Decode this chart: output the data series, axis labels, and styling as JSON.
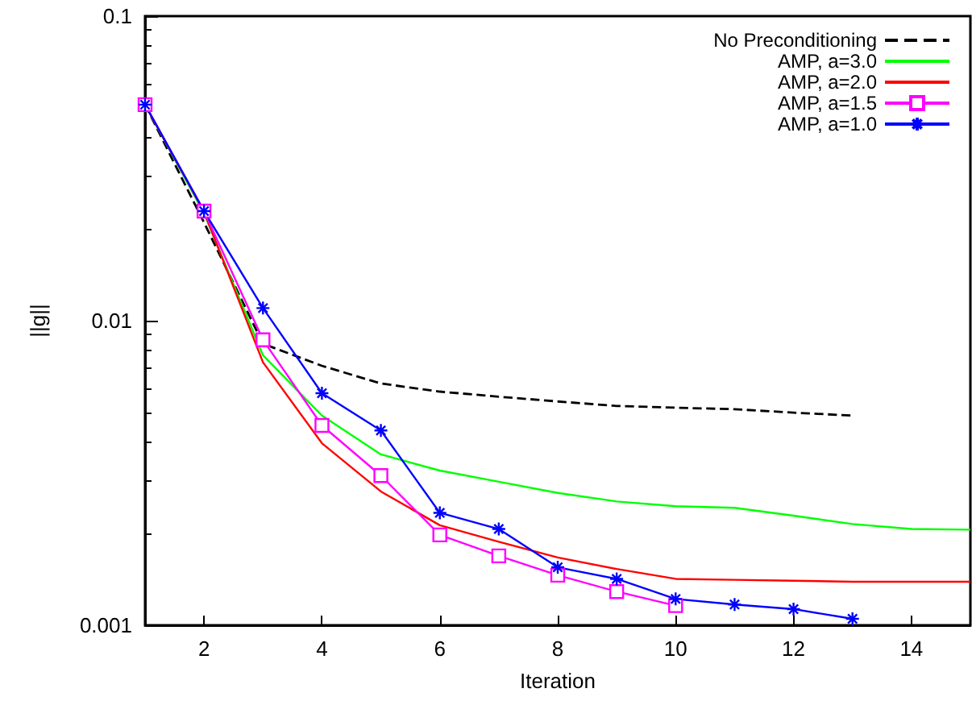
{
  "chart_data": {
    "type": "line",
    "xlabel": "Iteration",
    "ylabel": "||g||",
    "log": "y",
    "grid": false,
    "legend": "top right",
    "xlim": [
      1,
      15
    ],
    "xticks": [
      2,
      4,
      6,
      8,
      10,
      12,
      14
    ],
    "ylim": [
      0.001,
      0.1
    ],
    "yticks": [
      0.001,
      0.01,
      0.1
    ],
    "x": [
      1,
      2,
      3,
      4,
      5,
      6,
      7,
      8,
      9,
      10,
      11,
      12,
      13,
      14,
      15
    ],
    "series": [
      {
        "name": "No Preconditioning",
        "color": "#000000",
        "line_style": "dashed",
        "marker": "none",
        "values": [
          0.0512,
          0.021,
          0.0084,
          0.00711,
          0.00622,
          0.00585,
          0.00563,
          0.00543,
          0.00525,
          0.00518,
          0.00512,
          0.00499,
          0.00488,
          null,
          null
        ]
      },
      {
        "name": "AMP, a=3.0",
        "color": "#00ff00",
        "line_style": "solid",
        "marker": "none",
        "values": [
          0.0512,
          0.0225,
          0.0077,
          0.00488,
          0.00364,
          0.00322,
          0.00296,
          0.00272,
          0.00255,
          0.00246,
          0.00243,
          0.00229,
          0.00215,
          0.00207,
          0.00206
        ]
      },
      {
        "name": "AMP, a=2.0",
        "color": "#ff0000",
        "line_style": "solid",
        "marker": "none",
        "values": [
          0.0512,
          0.0228,
          0.0073,
          0.00396,
          0.00275,
          0.00213,
          0.00188,
          0.00167,
          0.00153,
          0.00142,
          0.00141,
          0.0014,
          0.00139,
          0.00139,
          0.00139
        ]
      },
      {
        "name": "AMP, a=1.5",
        "color": "#ff00ff",
        "line_style": "solid",
        "marker": "square",
        "values": [
          0.0512,
          0.0229,
          0.00865,
          0.00453,
          0.0031,
          0.00198,
          0.00169,
          0.00146,
          0.00129,
          0.00116,
          null,
          null,
          null,
          null,
          null
        ]
      },
      {
        "name": "AMP, a=1.0",
        "color": "#0000ff",
        "line_style": "solid",
        "marker": "cross",
        "values": [
          0.0512,
          0.0229,
          0.011,
          0.00578,
          0.00436,
          0.00234,
          0.00207,
          0.00155,
          0.00142,
          0.00122,
          0.00117,
          0.00113,
          0.00105,
          null,
          null
        ]
      }
    ]
  }
}
